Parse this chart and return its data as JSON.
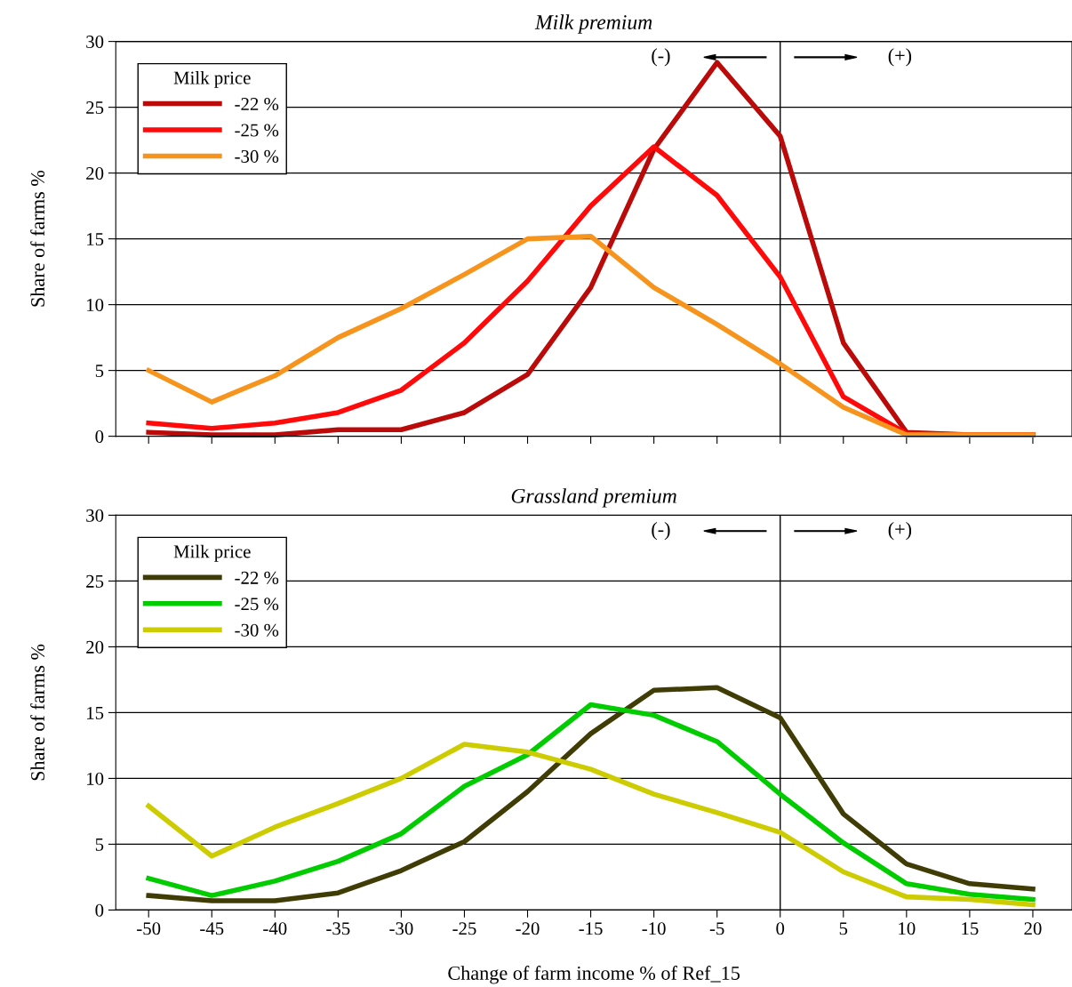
{
  "chart_data": [
    {
      "type": "line",
      "title": "Milk premium",
      "ylabel": "Share of farms %",
      "legend_title": "Milk price",
      "legend": "top left",
      "grid": "y",
      "tick_labels": "y",
      "x": [
        -50,
        -45,
        -40,
        -35,
        -30,
        -25,
        -20,
        -15,
        -10,
        -5,
        0,
        5,
        10,
        15,
        20
      ],
      "xlim": [
        -52.6,
        23.1
      ],
      "xticks": [
        -50,
        -45,
        -40,
        -35,
        -30,
        -25,
        -20,
        -15,
        -10,
        -5,
        0,
        5,
        10,
        15,
        20
      ],
      "ylim": [
        0,
        30
      ],
      "yticks": [
        0,
        5,
        10,
        15,
        20,
        25,
        30
      ],
      "ref_lines": [
        {
          "axis": "x",
          "value": 0,
          "color": "#000000"
        }
      ],
      "annotations": [
        "(-)",
        "(+)"
      ],
      "series": [
        {
          "name": "-22 %",
          "color": "#bb0a0a",
          "values": [
            0.3,
            0.1,
            0.1,
            0.5,
            0.5,
            1.8,
            4.7,
            11.3,
            21.8,
            28.4,
            22.8,
            7.1,
            0.3,
            0.1,
            0.1
          ]
        },
        {
          "name": "-25 %",
          "color": "#ff0a0a",
          "values": [
            1.0,
            0.6,
            1.0,
            1.8,
            3.5,
            7.1,
            11.8,
            17.5,
            22.0,
            18.3,
            12.1,
            3.0,
            0.2,
            0.1,
            0.1
          ]
        },
        {
          "name": "-30 %",
          "color": "#f7941d",
          "values": [
            5.0,
            2.6,
            4.6,
            7.5,
            9.7,
            12.3,
            15.0,
            15.2,
            11.3,
            8.5,
            5.5,
            2.2,
            0.1,
            0.1,
            0.1
          ]
        }
      ]
    },
    {
      "type": "line",
      "title": "Grassland premium",
      "ylabel": "Share of farms %",
      "xlabel": "Change of farm income % of Ref_15",
      "legend_title": "Milk price",
      "legend": "top left",
      "grid": "y",
      "x": [
        -50,
        -45,
        -40,
        -35,
        -30,
        -25,
        -20,
        -15,
        -10,
        -5,
        0,
        5,
        10,
        15,
        20
      ],
      "xlim": [
        -52.6,
        23.1
      ],
      "xticks": [
        -50,
        -45,
        -40,
        -35,
        -30,
        -25,
        -20,
        -15,
        -10,
        -5,
        0,
        5,
        10,
        15,
        20
      ],
      "ylim": [
        0,
        30
      ],
      "yticks": [
        0,
        5,
        10,
        15,
        20,
        25,
        30
      ],
      "ref_lines": [
        {
          "axis": "x",
          "value": 0,
          "color": "#000000"
        }
      ],
      "annotations": [
        "(-)",
        "(+)"
      ],
      "series": [
        {
          "name": "-22 %",
          "color": "#403c06",
          "values": [
            1.1,
            0.7,
            0.7,
            1.3,
            3.0,
            5.2,
            9.0,
            13.4,
            16.7,
            16.9,
            14.6,
            7.3,
            3.5,
            2.0,
            1.6
          ]
        },
        {
          "name": "-25 %",
          "color": "#00cc00",
          "values": [
            2.4,
            1.1,
            2.2,
            3.7,
            5.8,
            9.4,
            11.8,
            15.6,
            14.8,
            12.8,
            8.8,
            5.1,
            2.0,
            1.2,
            0.8
          ]
        },
        {
          "name": "-30 %",
          "color": "#cccc00",
          "values": [
            7.9,
            4.1,
            6.3,
            8.1,
            10.0,
            12.6,
            12.0,
            10.7,
            8.8,
            7.4,
            5.9,
            2.9,
            1.0,
            0.8,
            0.4
          ]
        }
      ]
    }
  ]
}
